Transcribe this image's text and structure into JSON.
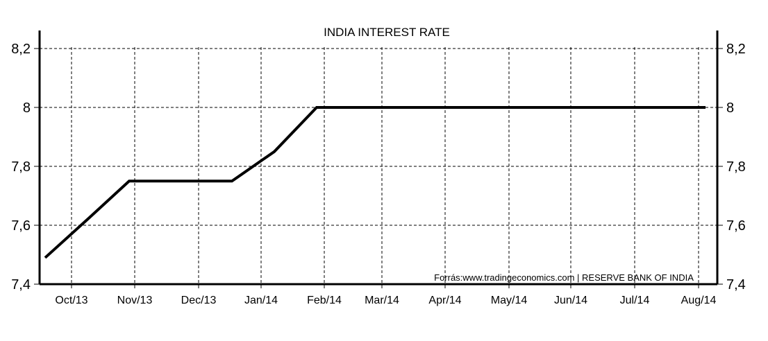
{
  "chart_data": {
    "type": "line",
    "title": "INDIA INTEREST RATE",
    "source": "Forrás:www.tradingeconomics.com  |  RESERVE BANK OF INDIA",
    "xlabel": "",
    "ylabel": "",
    "x_ticks": [
      "Oct/13",
      "Nov/13",
      "Dec/13",
      "Jan/14",
      "Feb/14",
      "Mar/14",
      "Apr/14",
      "May/14",
      "Jun/14",
      "Jul/14",
      "Aug/14"
    ],
    "y_ticks": [
      "7,4",
      "7,6",
      "7,8",
      "8",
      "8,2"
    ],
    "ylim": [
      7.4,
      8.25
    ],
    "grid": true,
    "series": [
      {
        "x": [
          "Sep/13",
          "Oct/13",
          "Oct/13",
          "Dec/13",
          "Jan/14",
          "Jan/14",
          "Feb/14",
          "Mar/14",
          "Apr/14",
          "May/14",
          "Jun/14",
          "Jul/14",
          "Aug/14"
        ],
        "values": [
          7.49,
          7.62,
          7.75,
          7.75,
          7.75,
          7.85,
          8.0,
          8.0,
          8.0,
          8.0,
          8.0,
          8.0,
          8.0
        ]
      }
    ]
  }
}
